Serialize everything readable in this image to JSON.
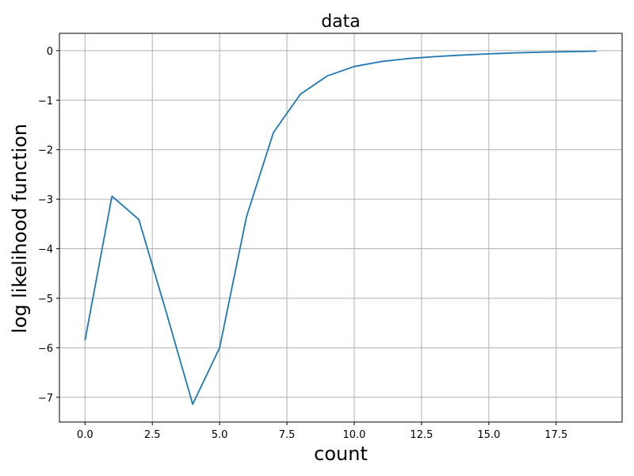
{
  "chart_data": {
    "type": "line",
    "title": "data",
    "xlabel": "count",
    "ylabel": "log likelihood function",
    "xlim": [
      -0.95,
      19.95
    ],
    "ylim": [
      -7.5,
      0.35
    ],
    "xticks": [
      0.0,
      2.5,
      5.0,
      7.5,
      10.0,
      12.5,
      15.0,
      17.5
    ],
    "xtick_labels": [
      "0.0",
      "2.5",
      "5.0",
      "7.5",
      "10.0",
      "12.5",
      "15.0",
      "17.5"
    ],
    "yticks": [
      0,
      -1,
      -2,
      -3,
      -4,
      -5,
      -6,
      -7
    ],
    "ytick_labels": [
      "0",
      "−1",
      "−2",
      "−3",
      "−4",
      "−5",
      "−6",
      "−7"
    ],
    "grid": true,
    "series": [
      {
        "color": "#1f77b4",
        "x": [
          0,
          1,
          2,
          3,
          4,
          5,
          6,
          7,
          8,
          9,
          10,
          11,
          12,
          13,
          14,
          15,
          16,
          17,
          18,
          19
        ],
        "values": [
          -5.85,
          -2.94,
          -3.41,
          -5.25,
          -7.14,
          -6.0,
          -3.35,
          -1.65,
          -0.88,
          -0.51,
          -0.32,
          -0.22,
          -0.16,
          -0.12,
          -0.09,
          -0.065,
          -0.045,
          -0.03,
          -0.02,
          -0.01
        ]
      }
    ]
  }
}
